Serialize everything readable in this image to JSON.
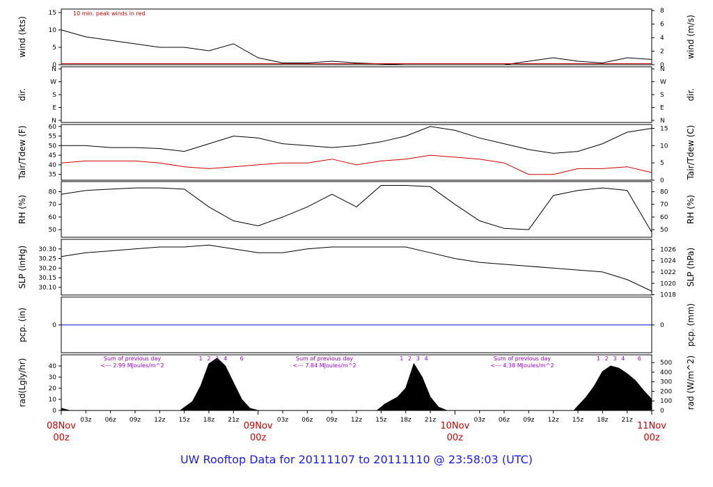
{
  "title": "UW Rooftop Data for 20111107  to  20111110 @ 23:58:03  (UTC)",
  "colors": {
    "primary": "#000000",
    "accent": "#cc0000",
    "pcp": "#0000cc",
    "solar": "#9900cc",
    "title": "#1a1aff"
  },
  "x_axis": {
    "hour_ticks": [
      "03z",
      "06z",
      "09z",
      "12z",
      "15z",
      "18z",
      "21z",
      "03z",
      "06z",
      "09z",
      "12z",
      "15z",
      "18z",
      "21z",
      "03z",
      "06z",
      "09z",
      "12z",
      "15z",
      "18z",
      "21z"
    ],
    "days": [
      {
        "date": "08Nov",
        "hour": "00z"
      },
      {
        "date": "09Nov",
        "hour": "00z"
      },
      {
        "date": "10Nov",
        "hour": "00z"
      },
      {
        "date": "11Nov",
        "hour": "00z"
      }
    ]
  },
  "chart_data": [
    {
      "type": "line",
      "name": "wind",
      "ylabel_left": "wind (kts)",
      "ylabel_right": "wind (m/s)",
      "ylim": [
        0,
        16
      ],
      "yticks_left": [
        "0",
        "5",
        "10",
        "15"
      ],
      "yticks_right": [
        "0",
        "2",
        "4",
        "6",
        "8"
      ],
      "annotation": "10 min. peak winds in red",
      "x_hours": [
        0,
        3,
        6,
        9,
        12,
        15,
        18,
        21,
        24,
        27,
        30,
        33,
        36,
        42,
        48,
        54,
        60,
        63,
        66,
        69,
        72
      ],
      "y": [
        10,
        8,
        7,
        6,
        5,
        5,
        4,
        6,
        2,
        0.5,
        0.5,
        1,
        0.5,
        0,
        0,
        0,
        2,
        1,
        0.5,
        2,
        1.5
      ]
    },
    {
      "type": "scatter",
      "name": "dir.",
      "ylabel_left": "dir.",
      "ylabel_right": "dir.",
      "yticks_left": [
        "N",
        "E",
        "S",
        "W",
        "N"
      ],
      "yticks_right": [
        "N",
        "E",
        "S",
        "W",
        "N"
      ]
    },
    {
      "type": "line",
      "name": "Tair/Tdew",
      "ylabel_left": "Tair/Tdew (F)",
      "ylabel_right": "Tair/Tdew (C)",
      "ylim": [
        32,
        61
      ],
      "yticks_left": [
        "35",
        "40",
        "45",
        "50",
        "55",
        "60"
      ],
      "yticks_right": [
        "0",
        "5",
        "10",
        "15"
      ],
      "series": [
        {
          "x_hours": [
            0,
            3,
            6,
            9,
            12,
            15,
            18,
            21,
            24,
            27,
            30,
            33,
            36,
            39,
            42,
            45,
            48,
            51,
            54,
            57,
            60,
            63,
            66,
            69,
            72
          ],
          "y": [
            50,
            50,
            49,
            49,
            48.5,
            47,
            51,
            55,
            54,
            51,
            50,
            49,
            50,
            52,
            55,
            60,
            58,
            54,
            51,
            48,
            46,
            47,
            51,
            57,
            59
          ]
        },
        {
          "x_hours": [
            0,
            3,
            6,
            9,
            12,
            15,
            18,
            21,
            24,
            27,
            30,
            33,
            36,
            39,
            42,
            45,
            48,
            51,
            54,
            57,
            60,
            63,
            66,
            69,
            72
          ],
          "y": [
            41,
            42,
            42,
            42,
            41,
            39,
            38,
            39,
            40,
            41,
            41,
            43,
            40,
            42,
            43,
            45,
            44,
            43,
            41,
            35,
            35,
            38,
            38,
            39,
            36
          ]
        }
      ]
    },
    {
      "type": "line",
      "name": "RH",
      "ylabel_left": "RH (%)",
      "ylabel_right": "RH (%)",
      "ylim": [
        44,
        88
      ],
      "yticks_left": [
        "50",
        "60",
        "70",
        "80"
      ],
      "yticks_right": [
        "50",
        "60",
        "70",
        "80"
      ],
      "x_hours": [
        0,
        3,
        6,
        9,
        12,
        15,
        18,
        21,
        24,
        27,
        30,
        33,
        36,
        39,
        42,
        45,
        48,
        51,
        54,
        57,
        60,
        63,
        66,
        69,
        72
      ],
      "y": [
        78,
        81,
        82,
        83,
        83,
        82,
        68,
        57,
        53,
        60,
        68,
        78,
        68,
        85,
        85,
        84,
        70,
        57,
        51,
        50,
        77,
        81,
        83,
        81,
        48
      ]
    },
    {
      "type": "line",
      "name": "SLP",
      "ylabel_left": "SLP (inHg)",
      "ylabel_right": "SLP (hPa)",
      "ylim": [
        30.06,
        30.35
      ],
      "yticks_left": [
        "30.10",
        "30.15",
        "30.20",
        "30.25",
        "30.30"
      ],
      "yticks_right": [
        "1018",
        "1020",
        "1022",
        "1024",
        "1026"
      ],
      "x_hours": [
        0,
        3,
        6,
        9,
        12,
        15,
        18,
        21,
        24,
        27,
        30,
        33,
        36,
        39,
        42,
        45,
        48,
        51,
        54,
        57,
        60,
        63,
        66,
        69,
        72
      ],
      "y": [
        30.26,
        30.28,
        30.29,
        30.3,
        30.31,
        30.31,
        30.32,
        30.3,
        30.28,
        30.28,
        30.3,
        30.31,
        30.31,
        30.31,
        30.31,
        30.28,
        30.25,
        30.23,
        30.22,
        30.21,
        30.2,
        30.19,
        30.18,
        30.14,
        30.08
      ]
    },
    {
      "type": "line",
      "name": "pcp",
      "ylabel_left": "pcp. (in)",
      "ylabel_right": "pcp. (mm)",
      "yticks_left": [
        "0"
      ],
      "yticks_right": [
        "0"
      ],
      "x_hours": [
        0,
        72
      ],
      "y": [
        0,
        0
      ]
    },
    {
      "type": "area",
      "name": "rad",
      "ylabel_left": "rad(Lgly/hr)",
      "ylabel_right": "rad (W/m^2)",
      "ylim": [
        0,
        50
      ],
      "yticks_left": [
        "0",
        "10",
        "20",
        "30",
        "40"
      ],
      "yticks_right": [
        "0",
        "100",
        "200",
        "300",
        "400",
        "500"
      ],
      "daily_sums": [
        {
          "line1": "Sum of previous day",
          "line2": "<--- 2.99 MJoules/m^2"
        },
        {
          "line1": "Sum of previous day",
          "line2": "<--- 7.84 MJoules/m^2"
        },
        {
          "line1": "Sum of previous day",
          "line2": "<--- 4.38 MJoules/m^2"
        }
      ],
      "hour_markers": [
        [
          "1",
          "2",
          "3",
          "4",
          "6"
        ],
        [
          "1",
          "2",
          "3",
          "4"
        ],
        [
          "1",
          "2",
          "3",
          "4",
          "6"
        ]
      ],
      "x_hours": [
        0,
        1,
        14.5,
        16,
        17,
        18,
        19,
        20,
        21,
        22,
        23,
        24,
        38.5,
        39.5,
        41,
        42,
        43,
        44,
        45,
        46,
        47,
        48,
        62.5,
        64,
        65,
        66,
        67,
        68,
        69,
        70,
        71,
        72
      ],
      "y": [
        2,
        0,
        0,
        8,
        22,
        42,
        47,
        40,
        25,
        10,
        2,
        0,
        0,
        6,
        12,
        20,
        42,
        30,
        12,
        3,
        0,
        0,
        0,
        12,
        22,
        35,
        40,
        38,
        33,
        27,
        18,
        10
      ]
    }
  ]
}
